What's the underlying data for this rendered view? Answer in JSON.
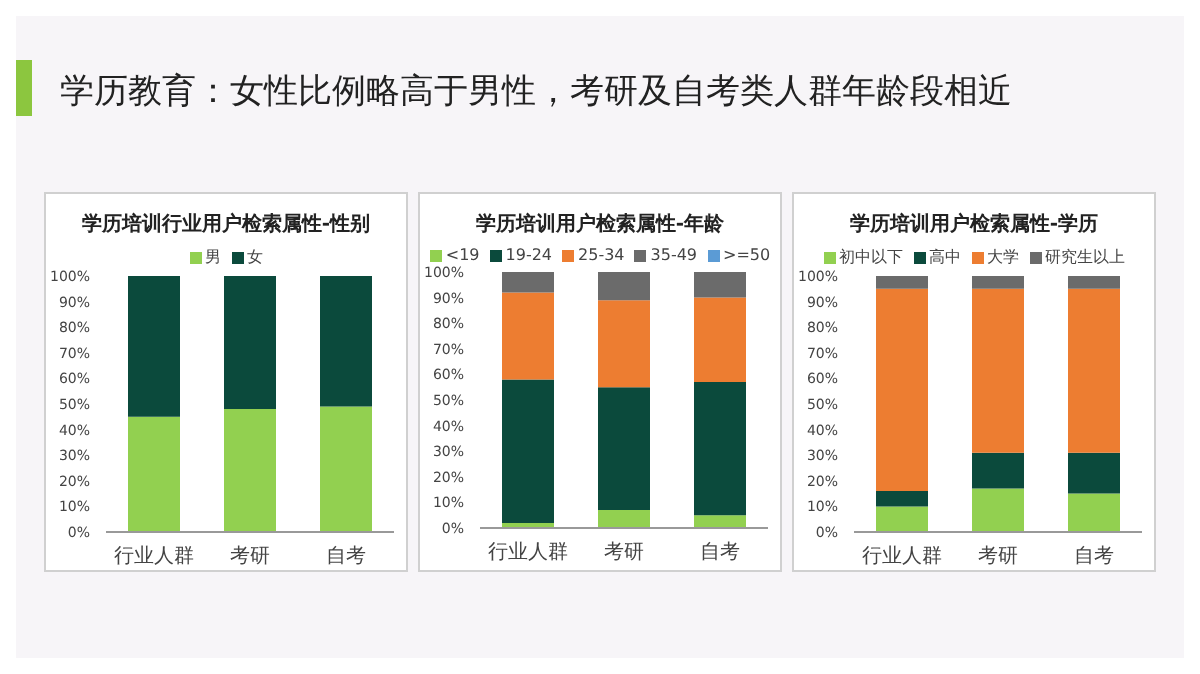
{
  "chart_data": [
    {
      "type": "bar",
      "stacked": true,
      "title": "学历培训行业用户检索属性-性别",
      "annotations": [
        "学历教育：女性比例略高于男性，考研及自考类人群年龄段相近"
      ],
      "categories": [
        "行业人群",
        "考研",
        "自考"
      ],
      "legend": "top",
      "ylim": [
        0,
        100
      ],
      "yticks": [
        {
          "value": 0,
          "label": "0%"
        },
        {
          "value": 10,
          "label": "10%"
        },
        {
          "value": 20,
          "label": "20%"
        },
        {
          "value": 30,
          "label": "30%"
        },
        {
          "value": 40,
          "label": "40%"
        },
        {
          "value": 50,
          "label": "50%"
        },
        {
          "value": 60,
          "label": "60%"
        },
        {
          "value": 70,
          "label": "70%"
        },
        {
          "value": 80,
          "label": "80%"
        },
        {
          "value": 90,
          "label": "90%"
        },
        {
          "value": 100,
          "label": "100%"
        }
      ],
      "series": [
        {
          "name": "男",
          "color": "#92d050",
          "values": [
            45,
            48,
            49
          ]
        },
        {
          "name": "女",
          "color": "#0b4a3c",
          "values": [
            55,
            52,
            51
          ]
        }
      ]
    },
    {
      "type": "bar",
      "stacked": true,
      "title": "学历培训用户检索属性-年龄",
      "categories": [
        "行业人群",
        "考研",
        "自考"
      ],
      "legend": "top",
      "ylim": [
        0,
        100
      ],
      "yticks": [
        {
          "value": 0,
          "label": "0%"
        },
        {
          "value": 10,
          "label": "10%"
        },
        {
          "value": 20,
          "label": "20%"
        },
        {
          "value": 30,
          "label": "30%"
        },
        {
          "value": 40,
          "label": "40%"
        },
        {
          "value": 50,
          "label": "50%"
        },
        {
          "value": 60,
          "label": "60%"
        },
        {
          "value": 70,
          "label": "70%"
        },
        {
          "value": 80,
          "label": "80%"
        },
        {
          "value": 90,
          "label": "90%"
        },
        {
          "value": 100,
          "label": "100%"
        }
      ],
      "series": [
        {
          "name": "<19",
          "color": "#92d050",
          "values": [
            2,
            7,
            5
          ]
        },
        {
          "name": "19-24",
          "color": "#0b4a3c",
          "values": [
            56,
            48,
            52
          ]
        },
        {
          "name": "25-34",
          "color": "#ed7d31",
          "values": [
            34,
            34,
            33
          ]
        },
        {
          "name": "35-49",
          "color": "#6b6b6b",
          "values": [
            8,
            11,
            10
          ]
        },
        {
          "name": ">=50",
          "color": "#5b9bd5",
          "values": [
            0,
            0,
            0
          ]
        }
      ]
    },
    {
      "type": "bar",
      "stacked": true,
      "title": "学历培训用户检索属性-学历",
      "categories": [
        "行业人群",
        "考研",
        "自考"
      ],
      "legend": "top",
      "ylim": [
        0,
        100
      ],
      "yticks": [
        {
          "value": 0,
          "label": "0%"
        },
        {
          "value": 10,
          "label": "10%"
        },
        {
          "value": 20,
          "label": "20%"
        },
        {
          "value": 30,
          "label": "30%"
        },
        {
          "value": 40,
          "label": "40%"
        },
        {
          "value": 50,
          "label": "50%"
        },
        {
          "value": 60,
          "label": "60%"
        },
        {
          "value": 70,
          "label": "70%"
        },
        {
          "value": 80,
          "label": "80%"
        },
        {
          "value": 90,
          "label": "90%"
        },
        {
          "value": 100,
          "label": "100%"
        }
      ],
      "series": [
        {
          "name": "初中以下",
          "color": "#92d050",
          "values": [
            10,
            17,
            15
          ]
        },
        {
          "name": "高中",
          "color": "#0b4a3c",
          "values": [
            6,
            14,
            16
          ]
        },
        {
          "name": "大学",
          "color": "#ed7d31",
          "values": [
            79,
            64,
            64
          ]
        },
        {
          "name": "研究生以上",
          "color": "#6b6b6b",
          "values": [
            5,
            5,
            5
          ]
        }
      ]
    }
  ]
}
